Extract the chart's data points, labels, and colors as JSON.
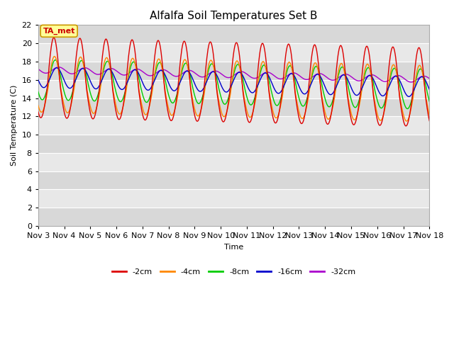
{
  "title": "Alfalfa Soil Temperatures Set B",
  "xlabel": "Time",
  "ylabel": "Soil Temperature (C)",
  "ylim": [
    0,
    22
  ],
  "yticks": [
    0,
    2,
    4,
    6,
    8,
    10,
    12,
    14,
    16,
    18,
    20,
    22
  ],
  "x_tick_labels": [
    "Nov 3",
    "Nov 4",
    "Nov 5",
    "Nov 6",
    "Nov 7",
    "Nov 8",
    "Nov 9",
    "Nov 10",
    "Nov 11",
    "Nov 12",
    "Nov 13",
    "Nov 14",
    "Nov 15",
    "Nov 16",
    "Nov 17",
    "Nov 18"
  ],
  "colors": {
    "-2cm": "#dd0000",
    "-4cm": "#ff8800",
    "-8cm": "#00cc00",
    "-16cm": "#0000cc",
    "-32cm": "#aa00cc"
  },
  "annotation_text": "TA_met",
  "annotation_box_color": "#ffff99",
  "annotation_border_color": "#cc9900",
  "title_fontsize": 11,
  "axis_label_fontsize": 8,
  "tick_fontsize": 8,
  "legend_fontsize": 8
}
